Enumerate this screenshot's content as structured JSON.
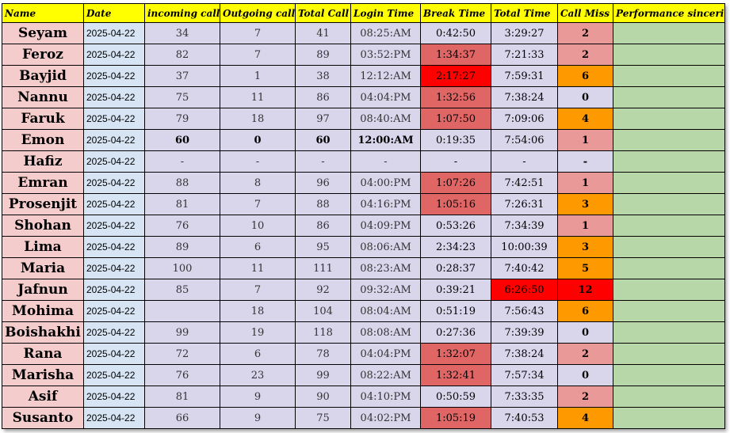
{
  "headers": [
    "Name",
    "Date",
    "incoming call",
    "Outgoing call",
    "Total Call",
    "Login Time",
    "Break Time",
    "Total Time",
    "Call Miss",
    "Performance sincerity"
  ],
  "rows": [
    {
      "name": "Seyam",
      "date": "2025-04-22",
      "incoming": "34",
      "outgoing": "7",
      "total_call": "41",
      "login": "08:25:AM",
      "break": "0:42:50",
      "total_time": "3:29:27",
      "miss": "2",
      "break_color": "",
      "total_color": "",
      "miss_color": "pink",
      "bold": false
    },
    {
      "name": "Feroz",
      "date": "2025-04-22",
      "incoming": "82",
      "outgoing": "7",
      "total_call": "89",
      "login": "03:52:PM",
      "break": "1:34:37",
      "total_time": "7:21:33",
      "miss": "2",
      "break_color": "pink",
      "total_color": "",
      "miss_color": "pink",
      "bold": false
    },
    {
      "name": "Bayjid",
      "date": "2025-04-22",
      "incoming": "37",
      "outgoing": "1",
      "total_call": "38",
      "login": "12:12:AM",
      "break": "2:17:27",
      "total_time": "7:59:31",
      "miss": "6",
      "break_color": "red",
      "total_color": "",
      "miss_color": "orange",
      "bold": false
    },
    {
      "name": "Nannu",
      "date": "2025-04-22",
      "incoming": "75",
      "outgoing": "11",
      "total_call": "86",
      "login": "04:04:PM",
      "break": "1:32:56",
      "total_time": "7:38:24",
      "miss": "0",
      "break_color": "pink",
      "total_color": "",
      "miss_color": "",
      "bold": false
    },
    {
      "name": "Faruk",
      "date": "2025-04-22",
      "incoming": "79",
      "outgoing": "18",
      "total_call": "97",
      "login": "08:40:AM",
      "break": "1:07:50",
      "total_time": "7:09:06",
      "miss": "4",
      "break_color": "pink",
      "total_color": "",
      "miss_color": "orange",
      "bold": false
    },
    {
      "name": "Emon",
      "date": "2025-04-22",
      "incoming": "60",
      "outgoing": "0",
      "total_call": "60",
      "login": "12:00:AM",
      "break": "0:19:35",
      "total_time": "7:54:06",
      "miss": "1",
      "break_color": "",
      "total_color": "",
      "miss_color": "pink",
      "bold": true
    },
    {
      "name": "Hafiz",
      "date": "2025-04-22",
      "incoming": "-",
      "outgoing": "-",
      "total_call": "-",
      "login": "-",
      "break": "-",
      "total_time": "-",
      "miss": "-",
      "break_color": "",
      "total_color": "",
      "miss_color": "",
      "bold": false
    },
    {
      "name": "Emran",
      "date": "2025-04-22",
      "incoming": "88",
      "outgoing": "8",
      "total_call": "96",
      "login": "04:00:PM",
      "break": "1:07:26",
      "total_time": "7:42:51",
      "miss": "1",
      "break_color": "pink",
      "total_color": "",
      "miss_color": "pink",
      "bold": false
    },
    {
      "name": "Prosenjit",
      "date": "2025-04-22",
      "incoming": "81",
      "outgoing": "7",
      "total_call": "88",
      "login": "04:16:PM",
      "break": "1:05:16",
      "total_time": "7:26:31",
      "miss": "3",
      "break_color": "pink",
      "total_color": "",
      "miss_color": "orange",
      "bold": false
    },
    {
      "name": "Shohan",
      "date": "2025-04-22",
      "incoming": "76",
      "outgoing": "10",
      "total_call": "86",
      "login": "04:09:PM",
      "break": "0:53:26",
      "total_time": "7:34:39",
      "miss": "1",
      "break_color": "",
      "total_color": "",
      "miss_color": "pink",
      "bold": false
    },
    {
      "name": "Lima",
      "date": "2025-04-22",
      "incoming": "89",
      "outgoing": "6",
      "total_call": "95",
      "login": "08:06:AM",
      "break": "2:34:23",
      "total_time": "10:00:39",
      "miss": "3",
      "break_color": "",
      "total_color": "",
      "miss_color": "orange",
      "bold": false
    },
    {
      "name": "Maria",
      "date": "2025-04-22",
      "incoming": "100",
      "outgoing": "11",
      "total_call": "111",
      "login": "08:23:AM",
      "break": "0:28:37",
      "total_time": "7:40:42",
      "miss": "5",
      "break_color": "",
      "total_color": "",
      "miss_color": "orange",
      "bold": false
    },
    {
      "name": "Jafnun",
      "date": "2025-04-22",
      "incoming": "85",
      "outgoing": "7",
      "total_call": "92",
      "login": "09:32:AM",
      "break": "0:39:21",
      "total_time": "6:26:50",
      "miss": "12",
      "break_color": "",
      "total_color": "red",
      "miss_color": "red",
      "bold": false
    },
    {
      "name": "Mohima",
      "date": "2025-04-22",
      "incoming": "",
      "outgoing": "18",
      "total_call": "104",
      "login": "08:04:AM",
      "break": "0:51:19",
      "total_time": "7:56:43",
      "miss": "6",
      "break_color": "",
      "total_color": "",
      "miss_color": "orange",
      "bold": false
    },
    {
      "name": "Boishakhi",
      "date": "2025-04-22",
      "incoming": "99",
      "outgoing": "19",
      "total_call": "118",
      "login": "08:08:AM",
      "break": "0:27:36",
      "total_time": "7:39:39",
      "miss": "0",
      "break_color": "",
      "total_color": "",
      "miss_color": "",
      "bold": false
    },
    {
      "name": "Rana",
      "date": "2025-04-22",
      "incoming": "72",
      "outgoing": "6",
      "total_call": "78",
      "login": "04:04:PM",
      "break": "1:32:07",
      "total_time": "7:38:24",
      "miss": "2",
      "break_color": "pink",
      "total_color": "",
      "miss_color": "pink",
      "bold": false
    },
    {
      "name": "Marisha",
      "date": "2025-04-22",
      "incoming": "76",
      "outgoing": "23",
      "total_call": "99",
      "login": "08:22:AM",
      "break": "1:32:41",
      "total_time": "7:57:34",
      "miss": "0",
      "break_color": "pink",
      "total_color": "",
      "miss_color": "",
      "bold": false
    },
    {
      "name": "Asif",
      "date": "2025-04-22",
      "incoming": "81",
      "outgoing": "9",
      "total_call": "90",
      "login": "04:10:PM",
      "break": "0:50:59",
      "total_time": "7:33:35",
      "miss": "2",
      "break_color": "",
      "total_color": "",
      "miss_color": "pink",
      "bold": false
    },
    {
      "name": "Susanto",
      "date": "2025-04-22",
      "incoming": "66",
      "outgoing": "9",
      "total_call": "75",
      "login": "04:02:PM",
      "break": "1:05:19",
      "total_time": "7:40:53",
      "miss": "4",
      "break_color": "pink",
      "total_color": "",
      "miss_color": "orange",
      "bold": false
    }
  ]
}
